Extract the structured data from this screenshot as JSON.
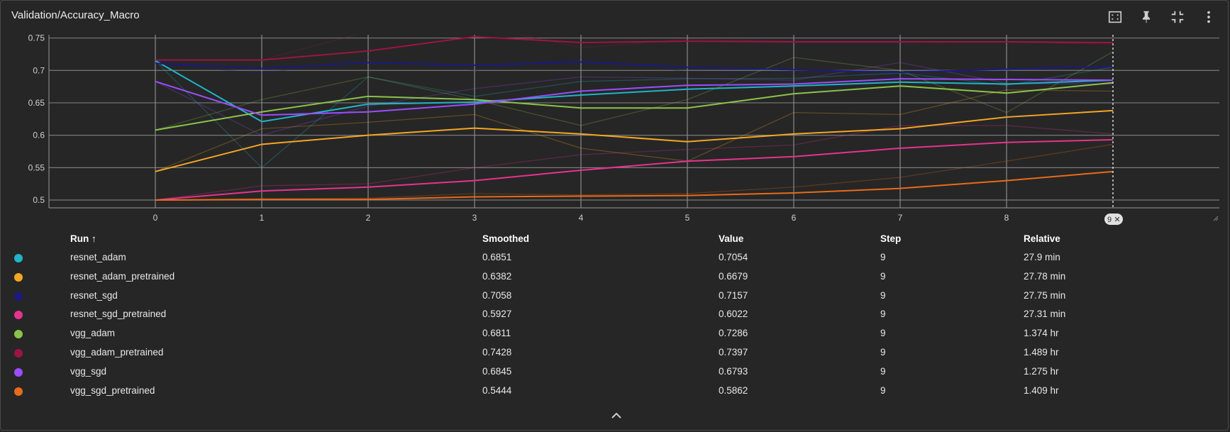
{
  "card": {
    "title": "Validation/Accuracy_Macro",
    "toolbar_icons": [
      "fit-to-data-icon",
      "pin-icon",
      "collapse-icon",
      "more-vert-icon"
    ]
  },
  "chart_data": {
    "type": "line",
    "title": "Validation/Accuracy_Macro",
    "x": [
      0,
      1,
      2,
      3,
      4,
      5,
      6,
      7,
      8,
      9
    ],
    "xlim": [
      -1,
      10.0
    ],
    "ylim": [
      0.488,
      0.755
    ],
    "yticks": [
      0.5,
      0.55,
      0.6,
      0.65,
      0.7,
      0.75
    ],
    "yticklabels": [
      "0.5",
      "0.55",
      "0.6",
      "0.65",
      "0.7",
      "0.75"
    ],
    "xticklabels": [
      "0",
      "1",
      "2",
      "3",
      "4",
      "5",
      "6",
      "7",
      "8"
    ],
    "hover_step_label": "9",
    "grid": true,
    "series": [
      {
        "name": "resnet_adam",
        "color": "#1fb4c8",
        "smoothed": [
          0.715,
          0.621,
          0.648,
          0.651,
          0.662,
          0.671,
          0.676,
          0.682,
          0.679,
          0.685
        ],
        "raw": [
          0.715,
          0.55,
          0.69,
          0.66,
          0.683,
          0.687,
          0.688,
          0.696,
          0.677,
          0.705
        ]
      },
      {
        "name": "resnet_adam_pretrained",
        "color": "#f5a623",
        "smoothed": [
          0.544,
          0.586,
          0.6,
          0.611,
          0.602,
          0.59,
          0.602,
          0.61,
          0.628,
          0.638
        ],
        "raw": [
          0.544,
          0.61,
          0.62,
          0.632,
          0.58,
          0.56,
          0.635,
          0.632,
          0.67,
          0.668
        ]
      },
      {
        "name": "resnet_sgd",
        "color": "#1a1a80",
        "smoothed": [
          0.711,
          0.703,
          0.712,
          0.708,
          0.713,
          0.705,
          0.701,
          0.697,
          0.702,
          0.706
        ],
        "raw": [
          0.711,
          0.695,
          0.72,
          0.7,
          0.72,
          0.698,
          0.695,
          0.69,
          0.7,
          0.716
        ]
      },
      {
        "name": "resnet_sgd_pretrained",
        "color": "#e6338e",
        "smoothed": [
          0.5,
          0.514,
          0.52,
          0.53,
          0.546,
          0.56,
          0.567,
          0.58,
          0.589,
          0.593
        ],
        "raw": [
          0.5,
          0.522,
          0.525,
          0.55,
          0.57,
          0.578,
          0.585,
          0.615,
          0.615,
          0.602
        ]
      },
      {
        "name": "vgg_adam",
        "color": "#8bc34a",
        "smoothed": [
          0.608,
          0.636,
          0.66,
          0.655,
          0.642,
          0.642,
          0.664,
          0.676,
          0.665,
          0.681
        ],
        "raw": [
          0.608,
          0.655,
          0.69,
          0.655,
          0.615,
          0.655,
          0.72,
          0.7,
          0.635,
          0.729
        ]
      },
      {
        "name": "vgg_adam_pretrained",
        "color": "#9c1445",
        "smoothed": [
          0.716,
          0.716,
          0.73,
          0.752,
          0.743,
          0.745,
          0.744,
          0.744,
          0.744,
          0.743
        ],
        "raw": [
          0.716,
          0.716,
          0.76,
          0.77,
          0.735,
          0.748,
          0.745,
          0.745,
          0.744,
          0.74
        ]
      },
      {
        "name": "vgg_sgd",
        "color": "#9b4dff",
        "smoothed": [
          0.683,
          0.631,
          0.636,
          0.648,
          0.668,
          0.677,
          0.679,
          0.687,
          0.686,
          0.685
        ],
        "raw": [
          0.683,
          0.6,
          0.645,
          0.672,
          0.69,
          0.688,
          0.685,
          0.712,
          0.68,
          0.679
        ]
      },
      {
        "name": "vgg_sgd_pretrained",
        "color": "#e86b1a",
        "smoothed": [
          0.5,
          0.501,
          0.501,
          0.505,
          0.506,
          0.507,
          0.511,
          0.518,
          0.53,
          0.544
        ],
        "raw": [
          0.5,
          0.502,
          0.503,
          0.51,
          0.508,
          0.51,
          0.52,
          0.535,
          0.56,
          0.586
        ]
      }
    ]
  },
  "table": {
    "headers": {
      "run": "Run ↑",
      "smoothed": "Smoothed",
      "value": "Value",
      "step": "Step",
      "relative": "Relative"
    },
    "rows": [
      {
        "run": "resnet_adam",
        "smoothed": "0.6851",
        "value": "0.7054",
        "step": "9",
        "relative": "27.9 min",
        "color": "#1fb4c8"
      },
      {
        "run": "resnet_adam_pretrained",
        "smoothed": "0.6382",
        "value": "0.6679",
        "step": "9",
        "relative": "27.78 min",
        "color": "#f5a623"
      },
      {
        "run": "resnet_sgd",
        "smoothed": "0.7058",
        "value": "0.7157",
        "step": "9",
        "relative": "27.75 min",
        "color": "#1a1a80"
      },
      {
        "run": "resnet_sgd_pretrained",
        "smoothed": "0.5927",
        "value": "0.6022",
        "step": "9",
        "relative": "27.31 min",
        "color": "#e6338e"
      },
      {
        "run": "vgg_adam",
        "smoothed": "0.6811",
        "value": "0.7286",
        "step": "9",
        "relative": "1.374 hr",
        "color": "#8bc34a"
      },
      {
        "run": "vgg_adam_pretrained",
        "smoothed": "0.7428",
        "value": "0.7397",
        "step": "9",
        "relative": "1.489 hr",
        "color": "#9c1445"
      },
      {
        "run": "vgg_sgd",
        "smoothed": "0.6845",
        "value": "0.6793",
        "step": "9",
        "relative": "1.275 hr",
        "color": "#9b4dff"
      },
      {
        "run": "vgg_sgd_pretrained",
        "smoothed": "0.5444",
        "value": "0.5862",
        "step": "9",
        "relative": "1.409 hr",
        "color": "#e86b1a"
      }
    ]
  }
}
